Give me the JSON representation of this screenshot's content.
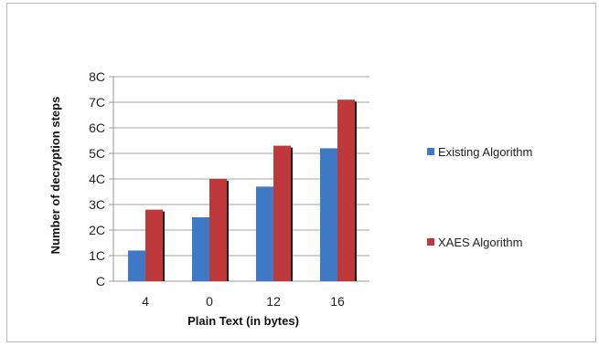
{
  "chart_data": {
    "type": "bar",
    "title": "",
    "xlabel": "Plain Text (in bytes)",
    "ylabel": "Number of decryption steps",
    "categories": [
      "4",
      "0",
      "12",
      "16"
    ],
    "y_ticks": [
      "C",
      "1C",
      "2C",
      "3C",
      "4C",
      "5C",
      "6C",
      "7C",
      "8C"
    ],
    "ylim": [
      0,
      80
    ],
    "grid": true,
    "legend_position": "right",
    "series": [
      {
        "name": "Existing Algorithm",
        "color": "#3f78c5",
        "values": [
          12,
          25,
          37,
          52
        ]
      },
      {
        "name": "XAES Algorithm",
        "color": "#c0393a",
        "values": [
          28,
          40,
          53,
          71
        ]
      }
    ]
  }
}
